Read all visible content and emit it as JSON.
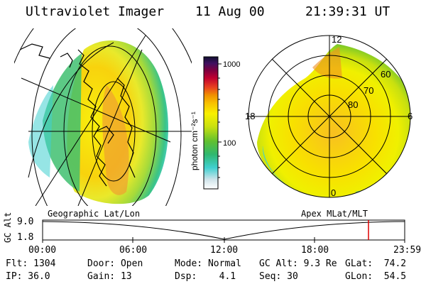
{
  "header": {
    "instrument": "Ultraviolet Imager",
    "date": "11 Aug 00",
    "time": "21:39:31 UT"
  },
  "colorbar": {
    "unit_label": "photon cm⁻²s⁻¹",
    "ticks": [
      "1000",
      "100"
    ]
  },
  "geo_panel": {
    "label": "Geographic Lat/Lon"
  },
  "polar_panel": {
    "label": "Apex MLat/MLT",
    "mlt_labels": [
      "12",
      "18",
      "6",
      "0"
    ],
    "lat_labels": [
      "60",
      "70",
      "80"
    ]
  },
  "altitude_plot": {
    "ylabel": "GC Alt",
    "ytick_top": "9.0",
    "ytick_bottom": "1.8",
    "xticks": [
      "00:00",
      "06:00",
      "12:00",
      "18:00",
      "23:59"
    ],
    "marker_color": "#e00000"
  },
  "status": {
    "flt": "Flt: 1304",
    "ip": "IP: 36.0",
    "door": "Door: Open",
    "gain": "Gain: 13",
    "mode": "Mode: Normal",
    "dsp": "Dsp:    4.1",
    "gc_alt": "GC Alt: 9.3 Re",
    "seq": "Seq: 30",
    "glat": "GLat:  74.2",
    "glon": "GLon:  54.5"
  }
}
